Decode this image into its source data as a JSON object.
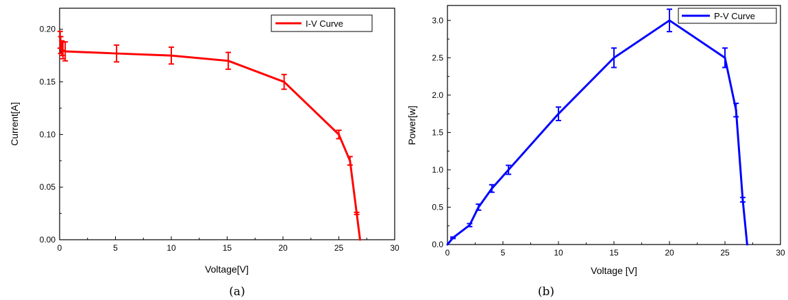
{
  "chart_data": [
    {
      "type": "line",
      "caption": "(a)",
      "xlabel": "Voltage[V]",
      "ylabel": "Current[A]",
      "xlim": [
        0,
        30
      ],
      "ylim": [
        0,
        0.22
      ],
      "x_ticks": [
        "0",
        "5",
        "10",
        "15",
        "20",
        "25",
        "30"
      ],
      "y_ticks": [
        "0.00",
        "0.05",
        "0.10",
        "0.15",
        "0.20"
      ],
      "legend_position": "top-right",
      "color": "#ff0000",
      "series": [
        {
          "name": "I-V Curve",
          "points": [
            {
              "x": 0.05,
              "y": 0.19,
              "err": 0.008
            },
            {
              "x": 0.1,
              "y": 0.185,
              "err": 0.008
            },
            {
              "x": 0.2,
              "y": 0.182,
              "err": 0.007
            },
            {
              "x": 0.3,
              "y": 0.18,
              "err": 0.008
            },
            {
              "x": 0.5,
              "y": 0.179,
              "err": 0.009
            },
            {
              "x": 5.1,
              "y": 0.177,
              "err": 0.008
            },
            {
              "x": 10.0,
              "y": 0.175,
              "err": 0.008
            },
            {
              "x": 15.1,
              "y": 0.17,
              "err": 0.008
            },
            {
              "x": 20.1,
              "y": 0.15,
              "err": 0.007
            },
            {
              "x": 25.0,
              "y": 0.1,
              "err": 0.004
            },
            {
              "x": 26.0,
              "y": 0.075,
              "err": 0.004
            },
            {
              "x": 26.6,
              "y": 0.025,
              "err": 0.001
            },
            {
              "x": 26.9,
              "y": 0.0,
              "err": 0.0
            }
          ]
        }
      ]
    },
    {
      "type": "line",
      "caption": "(b)",
      "xlabel": "Voltage [V]",
      "ylabel": "Power[w]",
      "xlim": [
        0,
        30
      ],
      "ylim": [
        0,
        3.2
      ],
      "x_ticks": [
        "0",
        "5",
        "10",
        "15",
        "20",
        "25",
        "30"
      ],
      "y_ticks": [
        "0.0",
        "0.5",
        "1.0",
        "1.5",
        "2.0",
        "2.5",
        "3.0"
      ],
      "legend_position": "top-right",
      "color": "#0000ff",
      "series": [
        {
          "name": "P-V Curve",
          "points": [
            {
              "x": 0.0,
              "y": 0.0,
              "err": 0.0
            },
            {
              "x": 0.5,
              "y": 0.09,
              "err": 0.01
            },
            {
              "x": 2.0,
              "y": 0.26,
              "err": 0.02
            },
            {
              "x": 2.8,
              "y": 0.5,
              "err": 0.04
            },
            {
              "x": 4.0,
              "y": 0.75,
              "err": 0.05
            },
            {
              "x": 5.5,
              "y": 1.0,
              "err": 0.06
            },
            {
              "x": 10.0,
              "y": 1.75,
              "err": 0.09
            },
            {
              "x": 15.0,
              "y": 2.5,
              "err": 0.13
            },
            {
              "x": 20.0,
              "y": 3.0,
              "err": 0.15
            },
            {
              "x": 25.0,
              "y": 2.5,
              "err": 0.13
            },
            {
              "x": 26.0,
              "y": 1.8,
              "err": 0.09
            },
            {
              "x": 26.6,
              "y": 0.6,
              "err": 0.03
            },
            {
              "x": 27.0,
              "y": 0.0,
              "err": 0.0
            }
          ]
        }
      ]
    }
  ]
}
